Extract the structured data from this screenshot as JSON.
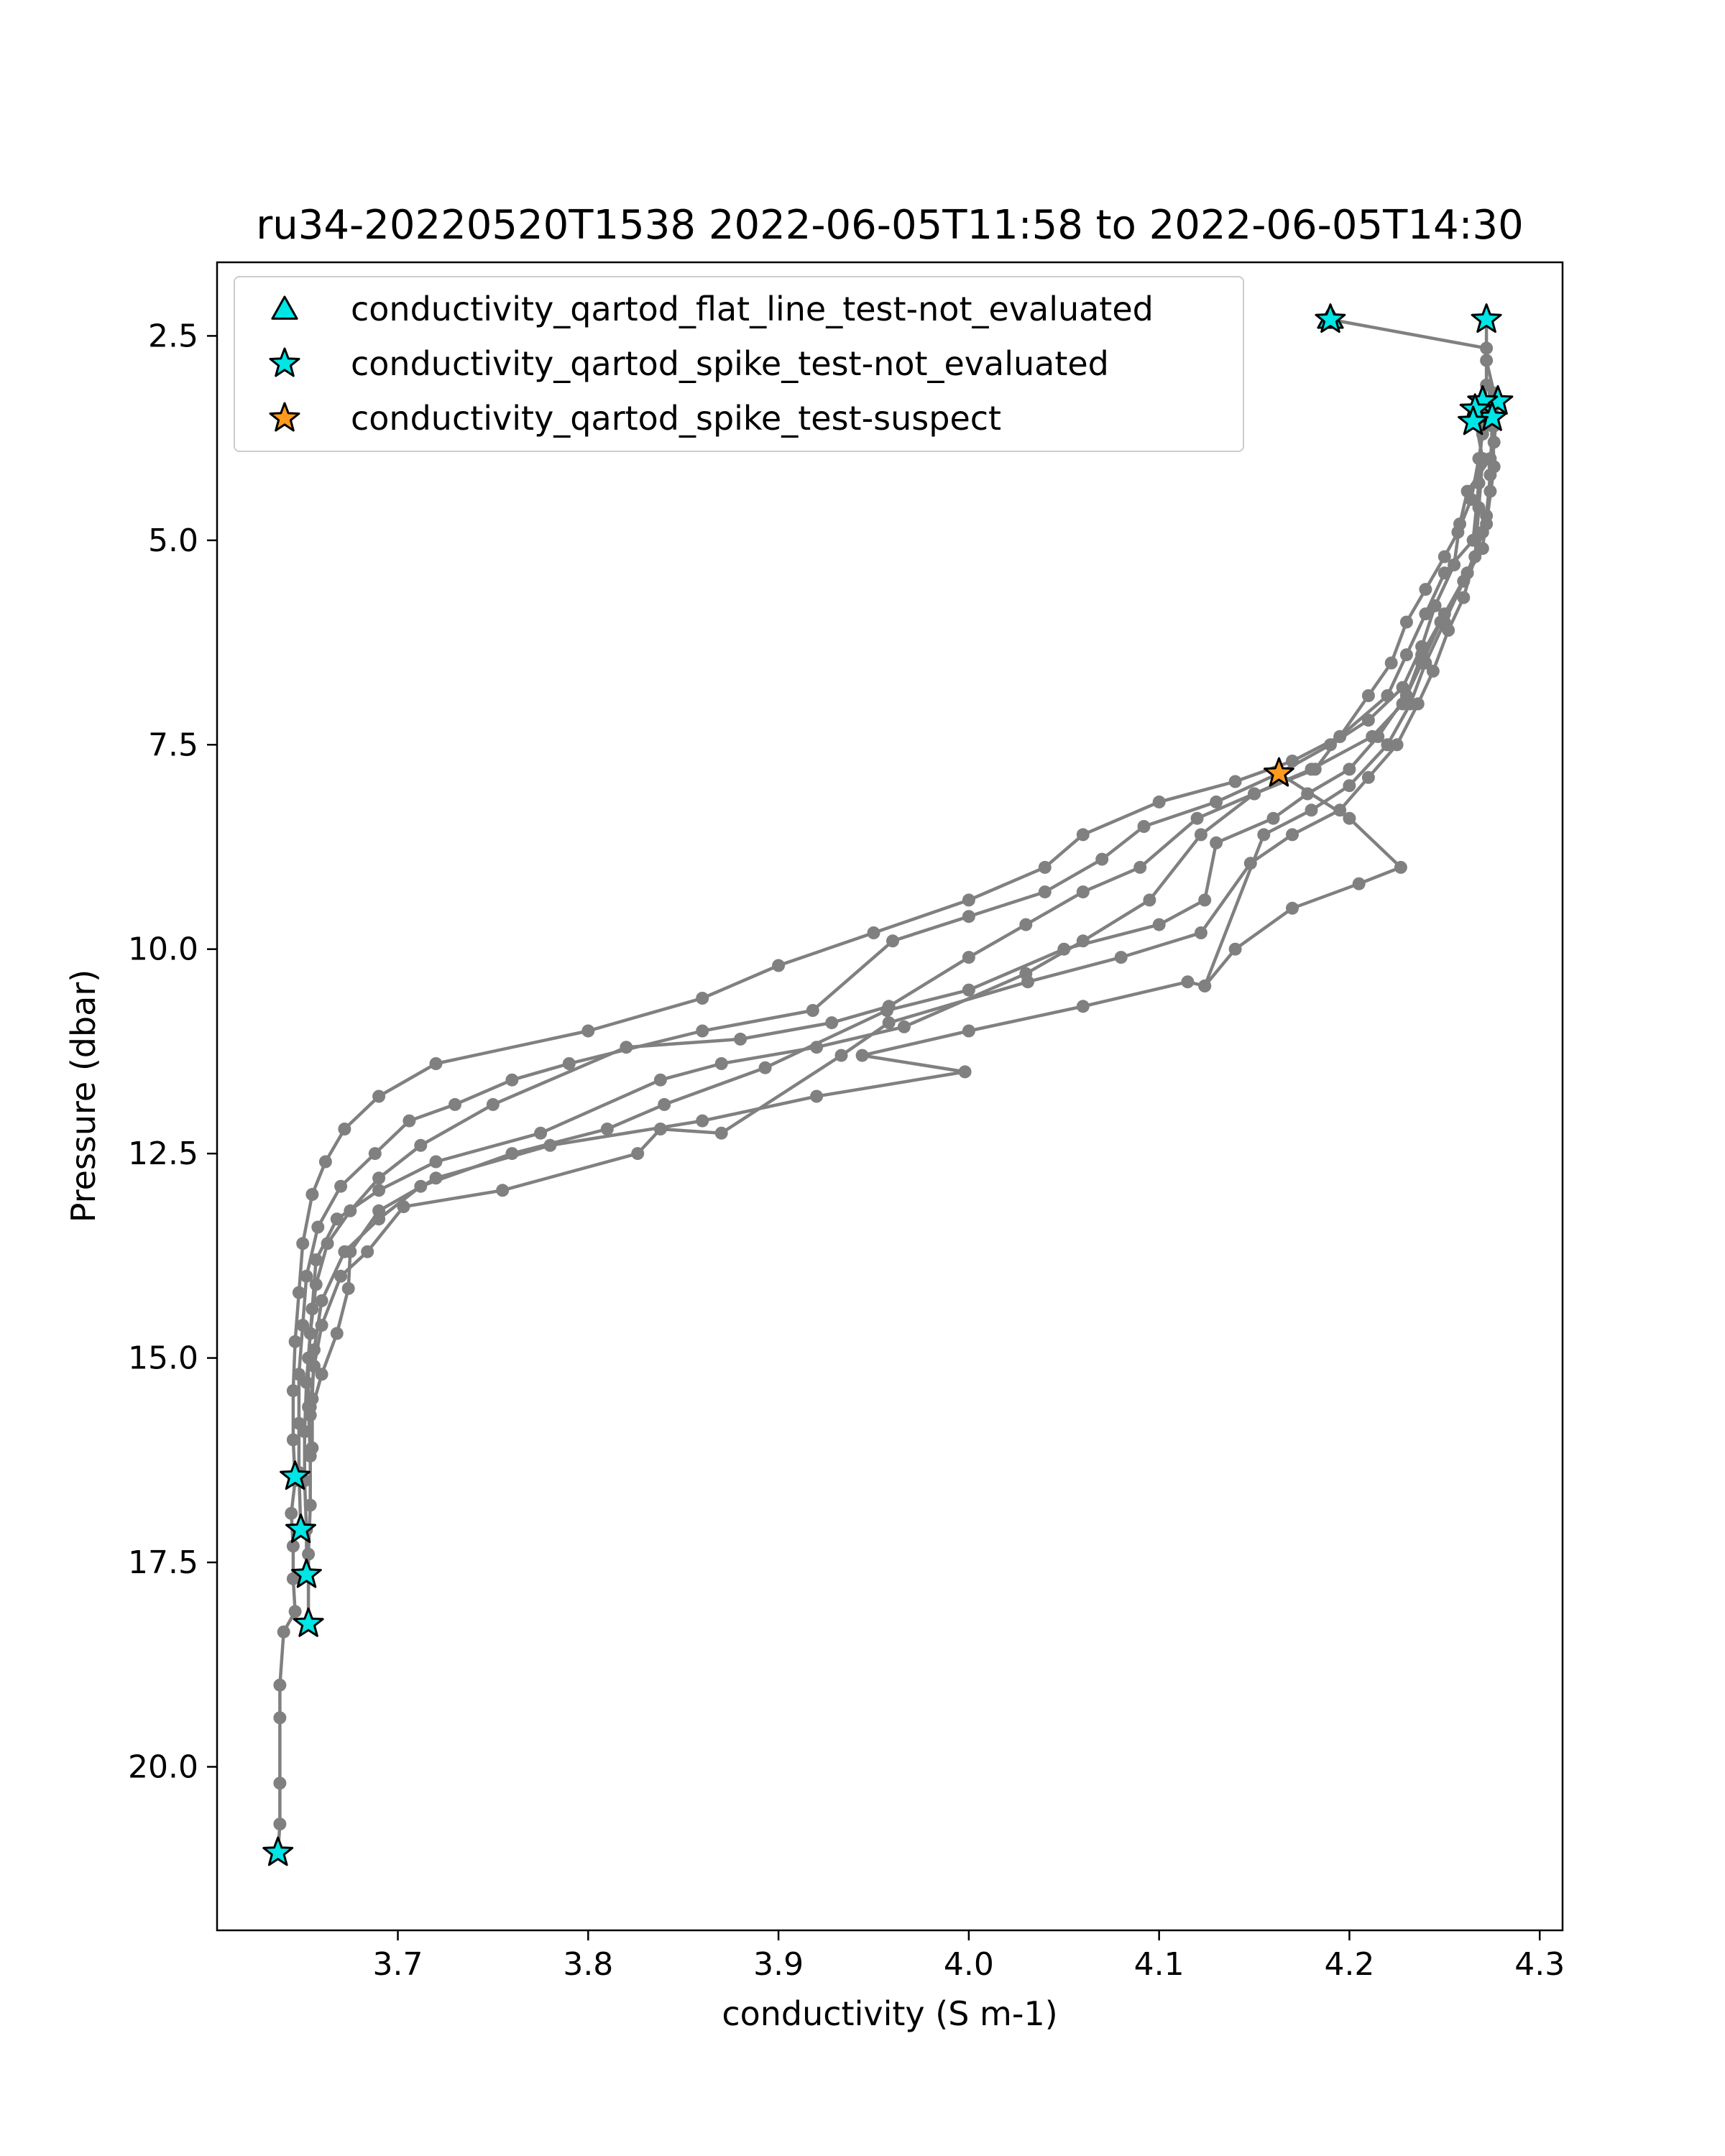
{
  "chart_data": {
    "type": "scatter",
    "title": "ru34-20220520T1538 2022-06-05T11:58 to 2022-06-05T14:30",
    "xlabel": "conductivity (S m-1)",
    "ylabel": "Pressure (dbar)",
    "xlim": [
      3.605,
      4.312
    ],
    "ylim": [
      22.0,
      1.6
    ],
    "y_inverted": true,
    "grid": false,
    "legend_position": "top-left",
    "x_ticks": [
      3.7,
      3.8,
      3.9,
      4.0,
      4.1,
      4.2,
      4.3
    ],
    "x_tick_labels": [
      "3.7",
      "3.8",
      "3.9",
      "4.0",
      "4.1",
      "4.2",
      "4.3"
    ],
    "y_ticks": [
      2.5,
      5.0,
      7.5,
      10.0,
      12.5,
      15.0,
      17.5,
      20.0
    ],
    "y_tick_labels": [
      "2.5",
      "5.0",
      "7.5",
      "10.0",
      "12.5",
      "15.0",
      "17.5",
      "20.0"
    ],
    "profile_color": "#808080",
    "profiles": [
      [
        [
          4.19,
          2.3
        ],
        [
          4.272,
          2.65
        ],
        [
          4.272,
          3.1
        ],
        [
          4.27,
          3.5
        ],
        [
          4.268,
          4.3
        ],
        [
          4.265,
          5.0
        ],
        [
          4.25,
          5.4
        ],
        [
          4.24,
          5.9
        ],
        [
          4.23,
          6.4
        ],
        [
          4.22,
          6.9
        ],
        [
          4.195,
          7.4
        ],
        [
          4.17,
          7.7
        ],
        [
          4.14,
          7.95
        ],
        [
          4.1,
          8.2
        ],
        [
          4.06,
          8.6
        ],
        [
          4.04,
          9.0
        ],
        [
          4.0,
          9.4
        ],
        [
          3.95,
          9.8
        ],
        [
          3.9,
          10.2
        ],
        [
          3.86,
          10.6
        ],
        [
          3.8,
          11.0
        ],
        [
          3.72,
          11.4
        ],
        [
          3.69,
          11.8
        ],
        [
          3.672,
          12.2
        ],
        [
          3.662,
          12.6
        ],
        [
          3.655,
          13.0
        ],
        [
          3.65,
          13.6
        ],
        [
          3.648,
          14.2
        ],
        [
          3.646,
          14.8
        ],
        [
          3.645,
          15.4
        ],
        [
          3.645,
          16.0
        ],
        [
          3.646,
          16.5
        ]
      ],
      [
        [
          4.272,
          2.3
        ],
        [
          4.272,
          2.8
        ],
        [
          4.276,
          3.2
        ],
        [
          4.276,
          3.6
        ],
        [
          4.274,
          4.0
        ],
        [
          4.262,
          4.4
        ],
        [
          4.258,
          4.8
        ],
        [
          4.255,
          5.3
        ],
        [
          4.245,
          5.8
        ],
        [
          4.238,
          6.3
        ],
        [
          4.228,
          6.8
        ],
        [
          4.21,
          7.2
        ],
        [
          4.19,
          7.5
        ],
        [
          4.163,
          7.85
        ],
        [
          4.13,
          8.2
        ],
        [
          4.092,
          8.5
        ],
        [
          4.07,
          8.9
        ],
        [
          4.04,
          9.3
        ],
        [
          4.0,
          9.6
        ],
        [
          3.96,
          9.9
        ],
        [
          3.918,
          10.75
        ],
        [
          3.86,
          11.0
        ],
        [
          3.79,
          11.4
        ],
        [
          3.76,
          11.6
        ],
        [
          3.73,
          11.9
        ],
        [
          3.706,
          12.1
        ],
        [
          3.688,
          12.5
        ],
        [
          3.67,
          12.9
        ],
        [
          3.658,
          13.4
        ],
        [
          3.652,
          14.0
        ],
        [
          3.65,
          14.6
        ],
        [
          3.648,
          15.2
        ],
        [
          3.648,
          15.8
        ],
        [
          3.648,
          16.4
        ],
        [
          3.649,
          17.1
        ]
      ],
      [
        [
          4.27,
          3.3
        ],
        [
          4.275,
          3.6
        ],
        [
          4.274,
          4.2
        ],
        [
          4.272,
          4.7
        ],
        [
          4.27,
          5.1
        ],
        [
          4.26,
          5.5
        ],
        [
          4.248,
          6.0
        ],
        [
          4.238,
          6.5
        ],
        [
          4.228,
          7.0
        ],
        [
          4.212,
          7.4
        ],
        [
          4.18,
          7.8
        ],
        [
          4.15,
          8.1
        ],
        [
          4.12,
          8.4
        ],
        [
          4.09,
          9.0
        ],
        [
          4.06,
          9.3
        ],
        [
          4.03,
          9.7
        ],
        [
          4.0,
          10.1
        ],
        [
          3.958,
          10.7
        ],
        [
          3.928,
          10.9
        ],
        [
          3.88,
          11.1
        ],
        [
          3.82,
          11.2
        ],
        [
          3.75,
          11.9
        ],
        [
          3.712,
          12.4
        ],
        [
          3.69,
          12.8
        ],
        [
          3.675,
          13.2
        ],
        [
          3.663,
          13.6
        ],
        [
          3.657,
          14.1
        ],
        [
          3.654,
          14.7
        ],
        [
          3.652,
          15.3
        ],
        [
          3.651,
          15.9
        ],
        [
          3.651,
          16.5
        ],
        [
          3.652,
          17.1
        ],
        [
          3.652,
          17.65
        ]
      ],
      [
        [
          4.266,
          3.4
        ],
        [
          4.27,
          3.7
        ],
        [
          4.268,
          4.0
        ],
        [
          4.264,
          4.5
        ],
        [
          4.257,
          4.9
        ],
        [
          4.25,
          5.2
        ],
        [
          4.24,
          5.6
        ],
        [
          4.23,
          6.0
        ],
        [
          4.222,
          6.5
        ],
        [
          4.21,
          6.9
        ],
        [
          4.195,
          7.4
        ],
        [
          4.182,
          7.8
        ],
        [
          4.15,
          8.1
        ],
        [
          4.122,
          8.6
        ],
        [
          4.095,
          9.4
        ],
        [
          4.06,
          9.9
        ],
        [
          4.03,
          10.3
        ],
        [
          3.966,
          10.95
        ],
        [
          3.92,
          11.2
        ],
        [
          3.87,
          11.4
        ],
        [
          3.838,
          11.6
        ],
        [
          3.775,
          12.25
        ],
        [
          3.72,
          12.6
        ],
        [
          3.69,
          12.95
        ],
        [
          3.668,
          13.3
        ],
        [
          3.657,
          13.8
        ],
        [
          3.655,
          14.4
        ],
        [
          3.653,
          15.0
        ],
        [
          3.653,
          15.6
        ],
        [
          3.654,
          16.2
        ],
        [
          3.654,
          16.8
        ],
        [
          3.653,
          17.4
        ],
        [
          3.653,
          18.25
        ]
      ],
      [
        [
          4.278,
          3.3
        ],
        [
          4.276,
          3.8
        ],
        [
          4.274,
          4.4
        ],
        [
          4.27,
          4.9
        ],
        [
          4.262,
          5.4
        ],
        [
          4.25,
          5.9
        ],
        [
          4.238,
          6.4
        ],
        [
          4.23,
          6.9
        ],
        [
          4.215,
          7.4
        ],
        [
          4.2,
          7.8
        ],
        [
          4.178,
          8.1
        ],
        [
          4.16,
          8.4
        ],
        [
          4.13,
          8.7
        ],
        [
          4.124,
          9.4
        ],
        [
          4.1,
          9.7
        ],
        [
          4.05,
          10.0
        ],
        [
          4.0,
          10.5
        ],
        [
          3.957,
          10.75
        ],
        [
          3.893,
          11.45
        ],
        [
          3.84,
          11.9
        ],
        [
          3.81,
          12.2
        ],
        [
          3.76,
          12.5
        ],
        [
          3.712,
          12.9
        ],
        [
          3.69,
          13.3
        ],
        [
          3.672,
          13.7
        ],
        [
          3.66,
          14.3
        ],
        [
          3.656,
          14.9
        ],
        [
          3.655,
          15.5
        ],
        [
          3.655,
          16.1
        ]
      ],
      [
        [
          4.266,
          3.5
        ],
        [
          4.27,
          4.0
        ],
        [
          4.268,
          4.6
        ],
        [
          4.266,
          5.2
        ],
        [
          4.26,
          5.7
        ],
        [
          4.252,
          6.1
        ],
        [
          4.244,
          6.6
        ],
        [
          4.236,
          7.0
        ],
        [
          4.225,
          7.5
        ],
        [
          4.21,
          7.9
        ],
        [
          4.195,
          8.3
        ],
        [
          4.17,
          8.6
        ],
        [
          4.148,
          8.95
        ],
        [
          4.122,
          9.8
        ],
        [
          4.08,
          10.1
        ],
        [
          4.031,
          10.4
        ],
        [
          3.958,
          10.9
        ],
        [
          3.933,
          11.3
        ],
        [
          3.87,
          12.25
        ],
        [
          3.838,
          12.2
        ],
        [
          3.826,
          12.5
        ],
        [
          3.755,
          12.95
        ],
        [
          3.703,
          13.15
        ],
        [
          3.684,
          13.7
        ],
        [
          3.67,
          14.0
        ],
        [
          3.66,
          14.6
        ],
        [
          3.656,
          15.1
        ],
        [
          3.654,
          15.6
        ]
      ],
      [
        [
          4.275,
          3.5
        ],
        [
          4.276,
          4.1
        ],
        [
          4.272,
          4.8
        ],
        [
          4.262,
          5.4
        ],
        [
          4.25,
          6.0
        ],
        [
          4.24,
          6.5
        ],
        [
          4.232,
          7.0
        ],
        [
          4.22,
          7.5
        ],
        [
          4.2,
          8.0
        ],
        [
          4.18,
          8.3
        ],
        [
          4.155,
          8.6
        ],
        [
          4.124,
          10.45
        ],
        [
          4.115,
          10.4
        ],
        [
          4.06,
          10.7
        ],
        [
          4.0,
          11.0
        ],
        [
          3.944,
          11.3
        ],
        [
          3.998,
          11.5
        ],
        [
          3.92,
          11.8
        ],
        [
          3.86,
          12.1
        ],
        [
          3.78,
          12.4
        ],
        [
          3.72,
          12.8
        ],
        [
          3.69,
          13.2
        ],
        [
          3.675,
          13.7
        ],
        [
          3.674,
          14.15
        ],
        [
          3.668,
          14.7
        ],
        [
          3.66,
          15.2
        ],
        [
          3.654,
          15.7
        ]
      ],
      [
        [
          4.163,
          7.85
        ],
        [
          4.2,
          8.4
        ],
        [
          4.227,
          9.0
        ],
        [
          4.205,
          9.2
        ],
        [
          4.17,
          9.5
        ],
        [
          4.14,
          10.0
        ],
        [
          4.124,
          10.45
        ]
      ],
      [
        [
          3.646,
          16.5
        ],
        [
          3.644,
          16.9
        ],
        [
          3.645,
          17.3
        ],
        [
          3.645,
          17.7
        ],
        [
          3.646,
          18.1
        ],
        [
          3.64,
          18.35
        ],
        [
          3.638,
          19.0
        ],
        [
          3.638,
          19.4
        ],
        [
          3.638,
          20.2
        ],
        [
          3.638,
          20.7
        ],
        [
          3.637,
          21.05
        ]
      ]
    ],
    "series": [
      {
        "name": "conductivity_qartod_flat_line_test-not_evaluated",
        "marker": "triangle",
        "color": "#00e5e5",
        "points": [
          [
            4.19,
            2.3
          ]
        ]
      },
      {
        "name": "conductivity_qartod_spike_test-not_evaluated",
        "marker": "star",
        "color": "#00e5e5",
        "points": [
          [
            4.19,
            2.3
          ],
          [
            4.272,
            2.3
          ],
          [
            4.278,
            3.3
          ],
          [
            4.27,
            3.3
          ],
          [
            4.275,
            3.5
          ],
          [
            4.266,
            3.4
          ],
          [
            4.265,
            3.55
          ],
          [
            3.646,
            16.45
          ],
          [
            3.649,
            17.1
          ],
          [
            3.652,
            17.65
          ],
          [
            3.653,
            18.25
          ],
          [
            3.637,
            21.05
          ]
        ]
      },
      {
        "name": "conductivity_qartod_spike_test-suspect",
        "marker": "star",
        "color": "#ff9a1f",
        "points": [
          [
            4.163,
            7.85
          ]
        ]
      }
    ]
  }
}
